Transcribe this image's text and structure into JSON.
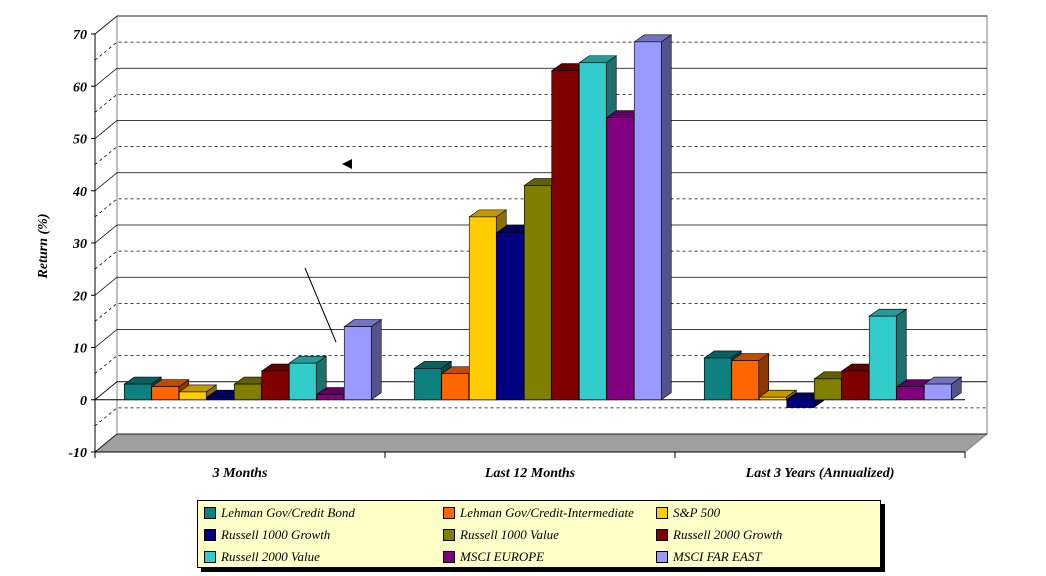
{
  "chart_data": {
    "type": "bar",
    "style": "3d clustered column",
    "title": "",
    "xlabel": "",
    "ylabel": "Return (%)",
    "ylim": [
      -10,
      70
    ],
    "yticks": [
      -10,
      0,
      10,
      20,
      30,
      40,
      50,
      60,
      70
    ],
    "grid": "major solid, minor dashed",
    "legend_position": "bottom",
    "categories": [
      "3 Months",
      "Last 12 Months",
      "Last 3 Years (Annualized)"
    ],
    "series": [
      {
        "name": "Lehman Gov/Credit Bond",
        "color": "#0d8080",
        "values": [
          3.0,
          6.0,
          8.0
        ]
      },
      {
        "name": "Lehman Gov/Credit-Intermediate",
        "color": "#ff6600",
        "values": [
          2.5,
          5.0,
          7.5
        ]
      },
      {
        "name": "S&P 500",
        "color": "#ffcc00",
        "values": [
          1.5,
          35.0,
          0.5
        ]
      },
      {
        "name": "Russell 1000 Growth",
        "color": "#000080",
        "values": [
          0.5,
          32.0,
          -1.5
        ]
      },
      {
        "name": "Russell 1000 Value",
        "color": "#808000",
        "values": [
          3.0,
          41.0,
          4.0
        ]
      },
      {
        "name": "Russell 2000 Growth",
        "color": "#800000",
        "values": [
          5.5,
          63.0,
          5.5
        ]
      },
      {
        "name": "Russell 2000 Value",
        "color": "#33cccc",
        "values": [
          7.0,
          64.5,
          16.0
        ]
      },
      {
        "name": "MSCI EUROPE",
        "color": "#800080",
        "values": [
          1.0,
          54.0,
          2.5
        ]
      },
      {
        "name": "MSCI FAR EAST",
        "color": "#9999ff",
        "values": [
          14.0,
          68.5,
          3.0
        ]
      }
    ]
  }
}
